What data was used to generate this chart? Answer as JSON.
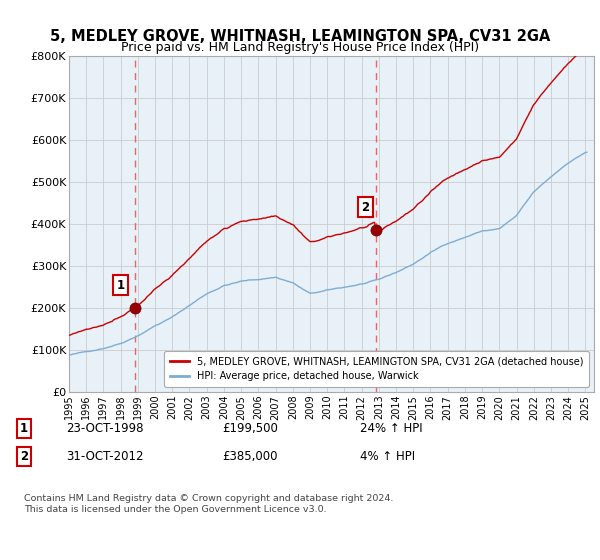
{
  "title": "5, MEDLEY GROVE, WHITNASH, LEAMINGTON SPA, CV31 2GA",
  "subtitle": "Price paid vs. HM Land Registry's House Price Index (HPI)",
  "ylim": [
    0,
    800000
  ],
  "yticks": [
    0,
    100000,
    200000,
    300000,
    400000,
    500000,
    600000,
    700000,
    800000
  ],
  "ytick_labels": [
    "£0",
    "£100K",
    "£200K",
    "£300K",
    "£400K",
    "£500K",
    "£600K",
    "£700K",
    "£800K"
  ],
  "xlim_start": 1995.0,
  "xlim_end": 2025.5,
  "xticks": [
    1995,
    1996,
    1997,
    1998,
    1999,
    2000,
    2001,
    2002,
    2003,
    2004,
    2005,
    2006,
    2007,
    2008,
    2009,
    2010,
    2011,
    2012,
    2013,
    2014,
    2015,
    2016,
    2017,
    2018,
    2019,
    2020,
    2021,
    2022,
    2023,
    2024,
    2025
  ],
  "purchase_dates": [
    1998.81,
    2012.83
  ],
  "purchase_prices": [
    199500,
    385000
  ],
  "purchase_labels": [
    "1",
    "2"
  ],
  "red_line_color": "#cc0000",
  "blue_line_color": "#7dadd4",
  "vline_color": "#ee5555",
  "point_color": "#990000",
  "bg_plot_color": "#e8f0f8",
  "legend_label_red": "5, MEDLEY GROVE, WHITNASH, LEAMINGTON SPA, CV31 2GA (detached house)",
  "legend_label_blue": "HPI: Average price, detached house, Warwick",
  "annotation_1_label": "1",
  "annotation_1_date": "23-OCT-1998",
  "annotation_1_price": "£199,500",
  "annotation_1_hpi": "24% ↑ HPI",
  "annotation_2_label": "2",
  "annotation_2_date": "31-OCT-2012",
  "annotation_2_price": "£385,000",
  "annotation_2_hpi": "4% ↑ HPI",
  "footer": "Contains HM Land Registry data © Crown copyright and database right 2024.\nThis data is licensed under the Open Government Licence v3.0.",
  "bg_color": "#ffffff",
  "grid_color": "#cccccc",
  "title_fontsize": 10.5,
  "subtitle_fontsize": 9
}
